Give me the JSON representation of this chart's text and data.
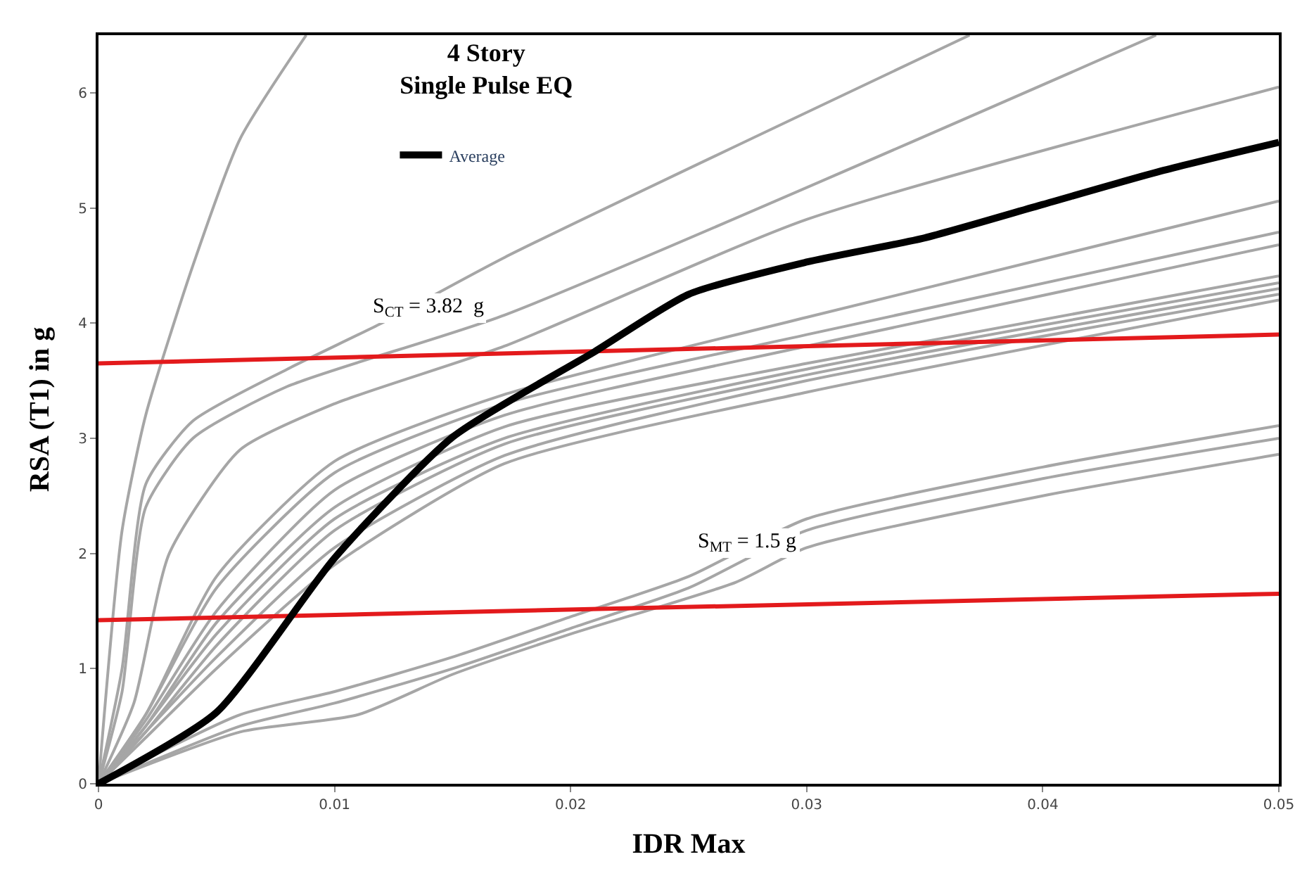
{
  "chart_data": {
    "type": "line",
    "title": "4 Story\nSingle Pulse EQ",
    "xlabel": "IDR Max",
    "ylabel": "RSA (T1) in g",
    "xlim": [
      0,
      0.05
    ],
    "xticks": [
      0,
      0.01,
      0.02,
      0.03,
      0.04,
      0.05
    ],
    "ylim": [
      0,
      6.5
    ],
    "yticks": [
      0,
      1,
      2,
      3,
      4,
      5,
      6
    ],
    "legend": "top",
    "marker": "none",
    "line_style": "solid",
    "series": [
      {
        "color": "#a6a6a6",
        "x": [
          0,
          0.001,
          0.002,
          0.004,
          0.006,
          0.0088
        ],
        "values": [
          0,
          2.2,
          3.2,
          4.5,
          5.6,
          6.5
        ]
      },
      {
        "color": "#a6a6a6",
        "x": [
          0,
          0.001,
          0.002,
          0.004,
          0.008,
          0.012,
          0.0172,
          0.0369
        ],
        "values": [
          0,
          1.0,
          2.6,
          3.15,
          3.6,
          4.0,
          4.57,
          6.5
        ]
      },
      {
        "color": "#a6a6a6",
        "x": [
          0,
          0.001,
          0.002,
          0.004,
          0.008,
          0.0172,
          0.0448
        ],
        "values": [
          0,
          0.8,
          2.4,
          3.0,
          3.45,
          4.07,
          6.5
        ]
      },
      {
        "color": "#a6a6a6",
        "x": [
          0,
          0.0015,
          0.003,
          0.006,
          0.01,
          0.0172,
          0.03,
          0.05
        ],
        "values": [
          0,
          0.7,
          2.0,
          2.9,
          3.3,
          3.8,
          4.9,
          6.05
        ]
      },
      {
        "color": "#a6a6a6",
        "x": [
          0,
          0.002,
          0.005,
          0.01,
          0.0172,
          0.03,
          0.05
        ],
        "values": [
          0,
          0.6,
          1.8,
          2.8,
          3.38,
          4.05,
          5.06
        ]
      },
      {
        "color": "#a6a6a6",
        "x": [
          0,
          0.002,
          0.005,
          0.01,
          0.0172,
          0.03,
          0.05
        ],
        "values": [
          0,
          0.6,
          1.7,
          2.7,
          3.3,
          3.9,
          4.79
        ]
      },
      {
        "color": "#a6a6a6",
        "x": [
          0,
          0.002,
          0.005,
          0.01,
          0.0172,
          0.03,
          0.05
        ],
        "values": [
          0,
          0.55,
          1.5,
          2.55,
          3.2,
          3.8,
          4.68
        ]
      },
      {
        "color": "#a6a6a6",
        "x": [
          0,
          0.002,
          0.005,
          0.01,
          0.0172,
          0.03,
          0.05
        ],
        "values": [
          0,
          0.5,
          1.4,
          2.4,
          3.1,
          3.65,
          4.41
        ]
      },
      {
        "color": "#a6a6a6",
        "x": [
          0,
          0.002,
          0.005,
          0.01,
          0.0172,
          0.03,
          0.05
        ],
        "values": [
          0,
          0.5,
          1.3,
          2.3,
          3.0,
          3.6,
          4.35
        ]
      },
      {
        "color": "#a6a6a6",
        "x": [
          0,
          0.002,
          0.005,
          0.01,
          0.0172,
          0.03,
          0.05
        ],
        "values": [
          0,
          0.45,
          1.2,
          2.2,
          2.95,
          3.55,
          4.3
        ]
      },
      {
        "color": "#a6a6a6",
        "x": [
          0,
          0.002,
          0.005,
          0.01,
          0.0172,
          0.03,
          0.05
        ],
        "values": [
          0,
          0.45,
          1.1,
          2.05,
          2.85,
          3.5,
          4.25
        ]
      },
      {
        "color": "#a6a6a6",
        "x": [
          0,
          0.002,
          0.005,
          0.01,
          0.0172,
          0.03,
          0.05
        ],
        "values": [
          0,
          0.4,
          1.0,
          1.9,
          2.78,
          3.4,
          4.2
        ]
      },
      {
        "color": "#a6a6a6",
        "x": [
          0,
          0.006,
          0.01,
          0.015,
          0.02,
          0.025,
          0.03,
          0.04,
          0.05
        ],
        "values": [
          0,
          0.6,
          0.8,
          1.1,
          1.45,
          1.8,
          2.3,
          2.75,
          3.11
        ]
      },
      {
        "color": "#a6a6a6",
        "x": [
          0,
          0.006,
          0.01,
          0.015,
          0.02,
          0.025,
          0.03,
          0.04,
          0.05
        ],
        "values": [
          0,
          0.5,
          0.7,
          1.0,
          1.35,
          1.7,
          2.2,
          2.65,
          3.0
        ]
      },
      {
        "color": "#a6a6a6",
        "x": [
          0,
          0.006,
          0.011,
          0.015,
          0.02,
          0.027,
          0.03,
          0.04,
          0.05
        ],
        "values": [
          0,
          0.45,
          0.6,
          0.95,
          1.3,
          1.75,
          2.05,
          2.5,
          2.86
        ]
      },
      {
        "color": "#e31a1c",
        "x": [
          0,
          0.05
        ],
        "values": [
          3.65,
          3.9
        ]
      },
      {
        "color": "#e31a1c",
        "x": [
          0,
          0.05
        ],
        "values": [
          1.42,
          1.65
        ]
      },
      {
        "name": "Average",
        "color": "#000000",
        "x": [
          0,
          0.005,
          0.01,
          0.015,
          0.021,
          0.025,
          0.03,
          0.035,
          0.04,
          0.045,
          0.05
        ],
        "values": [
          0,
          0.62,
          1.96,
          3.01,
          3.75,
          4.25,
          4.53,
          4.74,
          5.03,
          5.32,
          5.57
        ]
      }
    ],
    "annotations": [
      "S$_{CT}$ = 3.82  g",
      "S$_{MT}$ = 1.5 g"
    ]
  }
}
